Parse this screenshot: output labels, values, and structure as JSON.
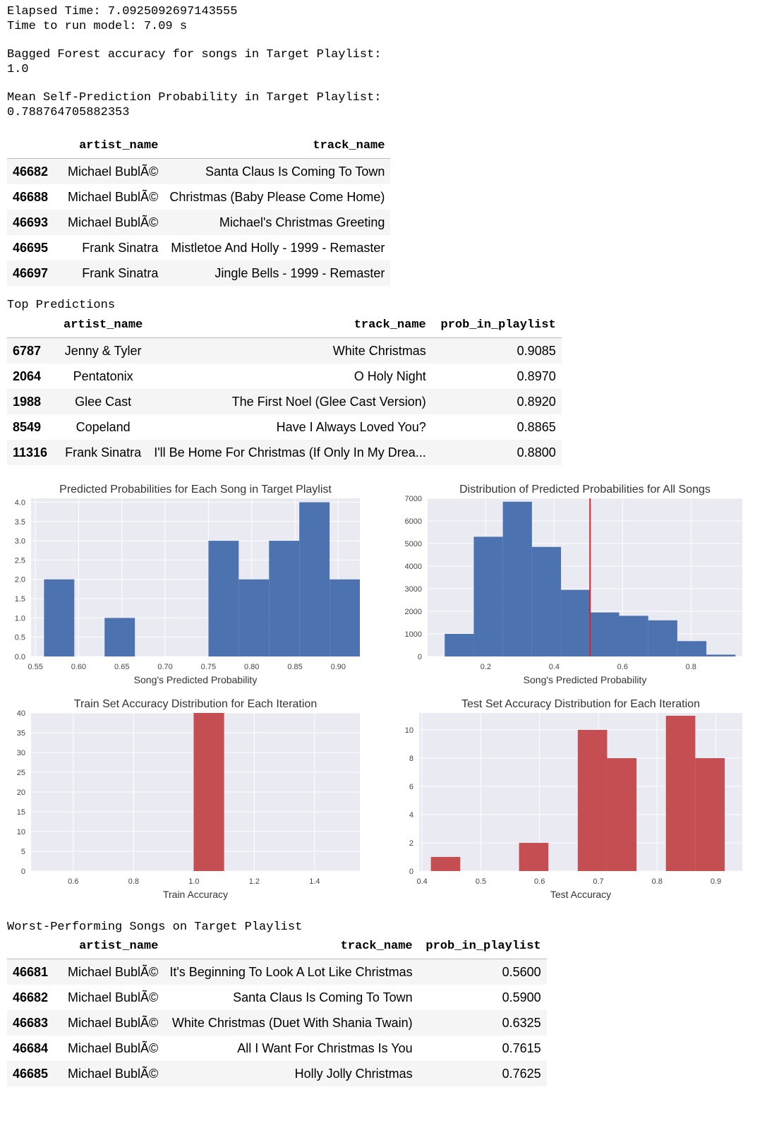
{
  "output": {
    "elapsed": "Elapsed Time: 7.0925092697143555",
    "run_time": "Time to run model: 7.09 s",
    "bagged_label": "Bagged Forest accuracy for songs in Target Playlist:",
    "bagged_value": "1.0",
    "mean_label": "Mean Self-Prediction Probability in Target Playlist:",
    "mean_value": "0.788764705882353"
  },
  "target_table": {
    "columns": [
      "artist_name",
      "track_name"
    ],
    "rows": [
      {
        "idx": "46682",
        "artist": "Michael BublÃ©",
        "track": "Santa Claus Is Coming To Town"
      },
      {
        "idx": "46688",
        "artist": "Michael BublÃ©",
        "track": "Christmas (Baby Please Come Home)"
      },
      {
        "idx": "46693",
        "artist": "Michael BublÃ©",
        "track": "Michael's Christmas Greeting"
      },
      {
        "idx": "46695",
        "artist": "Frank Sinatra",
        "track": "Mistletoe And Holly - 1999 - Remaster"
      },
      {
        "idx": "46697",
        "artist": "Frank Sinatra",
        "track": "Jingle Bells - 1999 - Remaster"
      }
    ]
  },
  "top_predictions": {
    "heading": "Top Predictions",
    "columns": [
      "artist_name",
      "track_name",
      "prob_in_playlist"
    ],
    "rows": [
      {
        "idx": "6787",
        "artist": "Jenny & Tyler",
        "track": "White Christmas",
        "prob": "0.9085"
      },
      {
        "idx": "2064",
        "artist": "Pentatonix",
        "track": "O Holy Night",
        "prob": "0.8970"
      },
      {
        "idx": "1988",
        "artist": "Glee Cast",
        "track": "The First Noel (Glee Cast Version)",
        "prob": "0.8920"
      },
      {
        "idx": "8549",
        "artist": "Copeland",
        "track": "Have I Always Loved You?",
        "prob": "0.8865"
      },
      {
        "idx": "11316",
        "artist": "Frank Sinatra",
        "track": "I'll Be Home For Christmas (If Only In My Drea...",
        "prob": "0.8800"
      }
    ]
  },
  "worst_songs": {
    "heading": "Worst-Performing Songs on Target Playlist",
    "columns": [
      "artist_name",
      "track_name",
      "prob_in_playlist"
    ],
    "rows": [
      {
        "idx": "46681",
        "artist": "Michael BublÃ©",
        "track": "It's Beginning To Look A Lot Like Christmas",
        "prob": "0.5600"
      },
      {
        "idx": "46682",
        "artist": "Michael BublÃ©",
        "track": "Santa Claus Is Coming To Town",
        "prob": "0.5900"
      },
      {
        "idx": "46683",
        "artist": "Michael BublÃ©",
        "track": "White Christmas (Duet With Shania Twain)",
        "prob": "0.6325"
      },
      {
        "idx": "46684",
        "artist": "Michael BublÃ©",
        "track": "All I Want For Christmas Is You",
        "prob": "0.7615"
      },
      {
        "idx": "46685",
        "artist": "Michael BublÃ©",
        "track": "Holly Jolly Christmas",
        "prob": "0.7625"
      }
    ]
  },
  "chart_data": [
    {
      "type": "bar",
      "title": "Predicted Probabilities for Each Song in Target Playlist",
      "xlabel": "Song's Predicted Probability",
      "ylabel": "",
      "xlim": [
        0.545,
        0.925
      ],
      "ylim": [
        0,
        4.1
      ],
      "xticks": [
        "0.55",
        "0.60",
        "0.65",
        "0.70",
        "0.75",
        "0.80",
        "0.85",
        "0.90"
      ],
      "yticks": [
        "0.0",
        "0.5",
        "1.0",
        "1.5",
        "2.0",
        "2.5",
        "3.0",
        "3.5",
        "4.0"
      ],
      "bins": [
        {
          "x0": 0.56,
          "x1": 0.595,
          "count": 2
        },
        {
          "x0": 0.63,
          "x1": 0.665,
          "count": 1
        },
        {
          "x0": 0.75,
          "x1": 0.785,
          "count": 3
        },
        {
          "x0": 0.785,
          "x1": 0.82,
          "count": 2
        },
        {
          "x0": 0.82,
          "x1": 0.855,
          "count": 3
        },
        {
          "x0": 0.855,
          "x1": 0.89,
          "count": 4
        },
        {
          "x0": 0.89,
          "x1": 0.925,
          "count": 2
        }
      ],
      "color": "#4c72b0",
      "grid": true
    },
    {
      "type": "bar",
      "title": "Distribution of Predicted Probabilities for All Songs",
      "xlabel": "Song's Predicted Probability",
      "ylabel": "",
      "xlim": [
        0.03,
        0.95
      ],
      "ylim": [
        0,
        7000
      ],
      "xticks": [
        "0.2",
        "0.4",
        "0.6",
        "0.8"
      ],
      "yticks": [
        "0",
        "1000",
        "2000",
        "3000",
        "4000",
        "5000",
        "6000",
        "7000"
      ],
      "bins": [
        {
          "x0": 0.08,
          "x1": 0.165,
          "count": 1000
        },
        {
          "x0": 0.165,
          "x1": 0.25,
          "count": 5300
        },
        {
          "x0": 0.25,
          "x1": 0.335,
          "count": 6850
        },
        {
          "x0": 0.335,
          "x1": 0.42,
          "count": 4850
        },
        {
          "x0": 0.42,
          "x1": 0.505,
          "count": 2950
        },
        {
          "x0": 0.505,
          "x1": 0.59,
          "count": 1950
        },
        {
          "x0": 0.59,
          "x1": 0.675,
          "count": 1800
        },
        {
          "x0": 0.675,
          "x1": 0.76,
          "count": 1600
        },
        {
          "x0": 0.76,
          "x1": 0.845,
          "count": 680
        },
        {
          "x0": 0.845,
          "x1": 0.93,
          "count": 80
        }
      ],
      "vline": 0.505,
      "vline_color": "#d62728",
      "color": "#4c72b0",
      "grid": true
    },
    {
      "type": "bar",
      "title": "Train Set Accuracy Distribution for Each Iteration",
      "xlabel": "Train Accuracy",
      "ylabel": "",
      "xlim": [
        0.46,
        1.55
      ],
      "ylim": [
        0,
        40
      ],
      "xticks": [
        "0.6",
        "0.8",
        "1.0",
        "1.2",
        "1.4"
      ],
      "yticks": [
        "0",
        "5",
        "10",
        "15",
        "20",
        "25",
        "30",
        "35",
        "40"
      ],
      "bins": [
        {
          "x0": 0.999,
          "x1": 1.1,
          "count": 40
        }
      ],
      "color": "#c44e52",
      "grid": true
    },
    {
      "type": "bar",
      "title": "Test Set Accuracy Distribution for Each Iteration",
      "xlabel": "Test Accuracy",
      "ylabel": "",
      "xlim": [
        0.395,
        0.945
      ],
      "ylim": [
        0,
        11.2
      ],
      "xticks": [
        "0.4",
        "0.5",
        "0.6",
        "0.7",
        "0.8",
        "0.9"
      ],
      "yticks": [
        "0",
        "2",
        "4",
        "6",
        "8",
        "10"
      ],
      "bins": [
        {
          "x0": 0.415,
          "x1": 0.465,
          "count": 1
        },
        {
          "x0": 0.565,
          "x1": 0.615,
          "count": 2
        },
        {
          "x0": 0.665,
          "x1": 0.715,
          "count": 10
        },
        {
          "x0": 0.715,
          "x1": 0.765,
          "count": 8
        },
        {
          "x0": 0.815,
          "x1": 0.865,
          "count": 11
        },
        {
          "x0": 0.865,
          "x1": 0.915,
          "count": 8
        }
      ],
      "color": "#c44e52",
      "grid": true
    }
  ]
}
